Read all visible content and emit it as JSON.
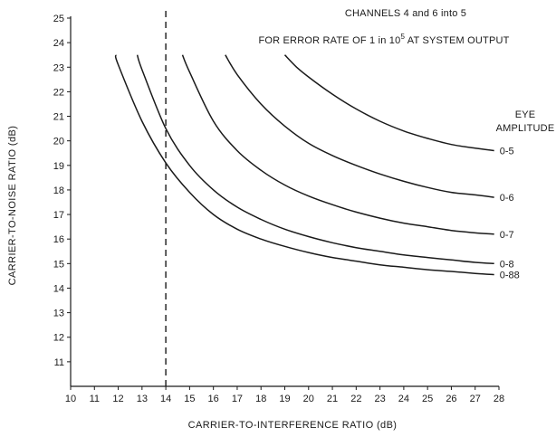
{
  "chart_data": {
    "type": "line",
    "title": "CHANNELS 4 and 6 into 5",
    "subtitle": {
      "prefix": "FOR ERROR RATE OF 1 in 10",
      "superscript": "5",
      "suffix": " AT SYSTEM OUTPUT"
    },
    "xlabel": "CARRIER-TO-INTERFERENCE RATIO (dB)",
    "ylabel": "CARRIER-TO-NOISE RATIO (dB)",
    "xlim": [
      10,
      28
    ],
    "ylim": [
      10,
      25
    ],
    "x_ticks": [
      10,
      11,
      12,
      13,
      14,
      15,
      16,
      17,
      18,
      19,
      20,
      21,
      22,
      23,
      24,
      25,
      26,
      27,
      28
    ],
    "y_ticks": [
      11,
      12,
      13,
      14,
      15,
      16,
      17,
      18,
      19,
      20,
      21,
      22,
      23,
      24,
      25
    ],
    "legend_title": [
      "EYE",
      "AMPLITUDE"
    ],
    "reference_line": {
      "x": 14,
      "style": "dashed"
    },
    "series": [
      {
        "name": "0-5",
        "x": [
          19.0,
          19.5,
          20.0,
          21.0,
          22.0,
          23.0,
          24.0,
          25.0,
          26.0,
          27.0,
          27.8
        ],
        "y": [
          23.5,
          23.0,
          22.6,
          21.9,
          21.3,
          20.8,
          20.4,
          20.1,
          19.85,
          19.7,
          19.6
        ]
      },
      {
        "name": "0-6",
        "x": [
          16.5,
          17.0,
          18.0,
          19.0,
          20.0,
          21.0,
          22.0,
          23.0,
          24.0,
          25.0,
          26.0,
          27.0,
          27.8
        ],
        "y": [
          23.5,
          22.7,
          21.5,
          20.6,
          19.9,
          19.4,
          19.0,
          18.65,
          18.35,
          18.1,
          17.9,
          17.8,
          17.7
        ]
      },
      {
        "name": "0-7",
        "x": [
          14.7,
          15.0,
          16.0,
          17.0,
          18.0,
          19.0,
          20.0,
          21.0,
          22.0,
          23.0,
          24.0,
          25.0,
          26.0,
          27.0,
          27.8
        ],
        "y": [
          23.5,
          22.8,
          20.8,
          19.6,
          18.8,
          18.2,
          17.75,
          17.4,
          17.1,
          16.85,
          16.65,
          16.5,
          16.35,
          16.25,
          16.2
        ]
      },
      {
        "name": "0-8",
        "x": [
          12.8,
          13.0,
          14.0,
          15.0,
          16.0,
          17.0,
          18.0,
          19.0,
          20.0,
          21.0,
          22.0,
          23.0,
          24.0,
          25.0,
          26.0,
          27.0,
          27.8
        ],
        "y": [
          23.5,
          22.9,
          20.5,
          19.0,
          18.0,
          17.3,
          16.8,
          16.4,
          16.1,
          15.85,
          15.65,
          15.5,
          15.35,
          15.25,
          15.15,
          15.05,
          15.0
        ]
      },
      {
        "name": "0-88",
        "x": [
          11.9,
          12.0,
          13.0,
          14.0,
          15.0,
          16.0,
          17.0,
          18.0,
          19.0,
          20.0,
          21.0,
          22.0,
          23.0,
          24.0,
          25.0,
          26.0,
          27.0,
          27.8
        ],
        "y": [
          23.5,
          23.1,
          20.8,
          19.1,
          17.9,
          17.0,
          16.4,
          16.0,
          15.7,
          15.45,
          15.25,
          15.1,
          14.95,
          14.85,
          14.75,
          14.68,
          14.6,
          14.55
        ]
      }
    ]
  }
}
